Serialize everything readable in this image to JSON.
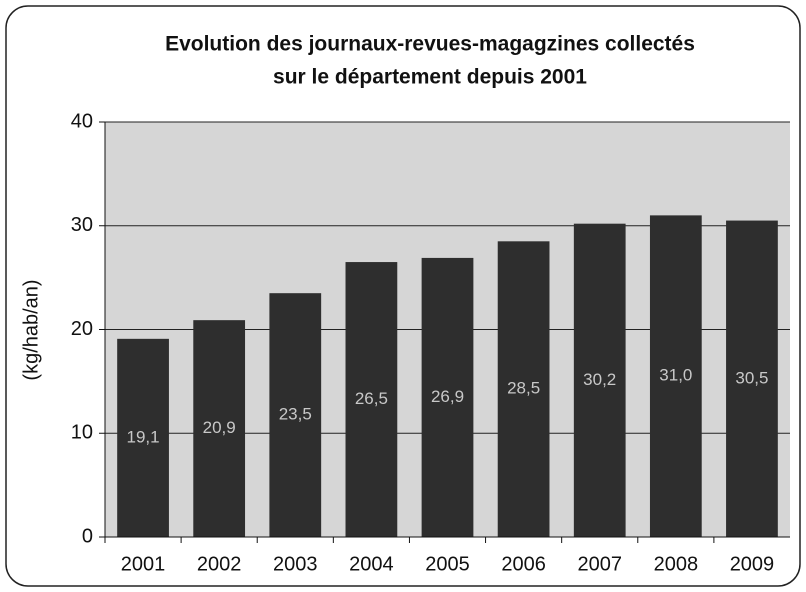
{
  "chart_data": {
    "type": "bar",
    "title": "Evolution des journaux-revues-magagzines collectés",
    "subtitle": "sur le département depuis 2001",
    "y_label": "(kg/hab/an)",
    "categories": [
      "2001",
      "2002",
      "2003",
      "2004",
      "2005",
      "2006",
      "2007",
      "2008",
      "2009"
    ],
    "values": [
      19.1,
      20.9,
      23.5,
      26.5,
      26.9,
      28.5,
      30.2,
      31.0,
      30.5
    ],
    "value_labels": [
      "19,1",
      "20,9",
      "23,5",
      "26,5",
      "26,9",
      "28,5",
      "30,2",
      "31,0",
      "30,5"
    ],
    "color": "#2e2e2e",
    "ylim": [
      0,
      40
    ],
    "yticks": [
      0,
      10,
      20,
      30,
      40
    ],
    "grid": true
  }
}
